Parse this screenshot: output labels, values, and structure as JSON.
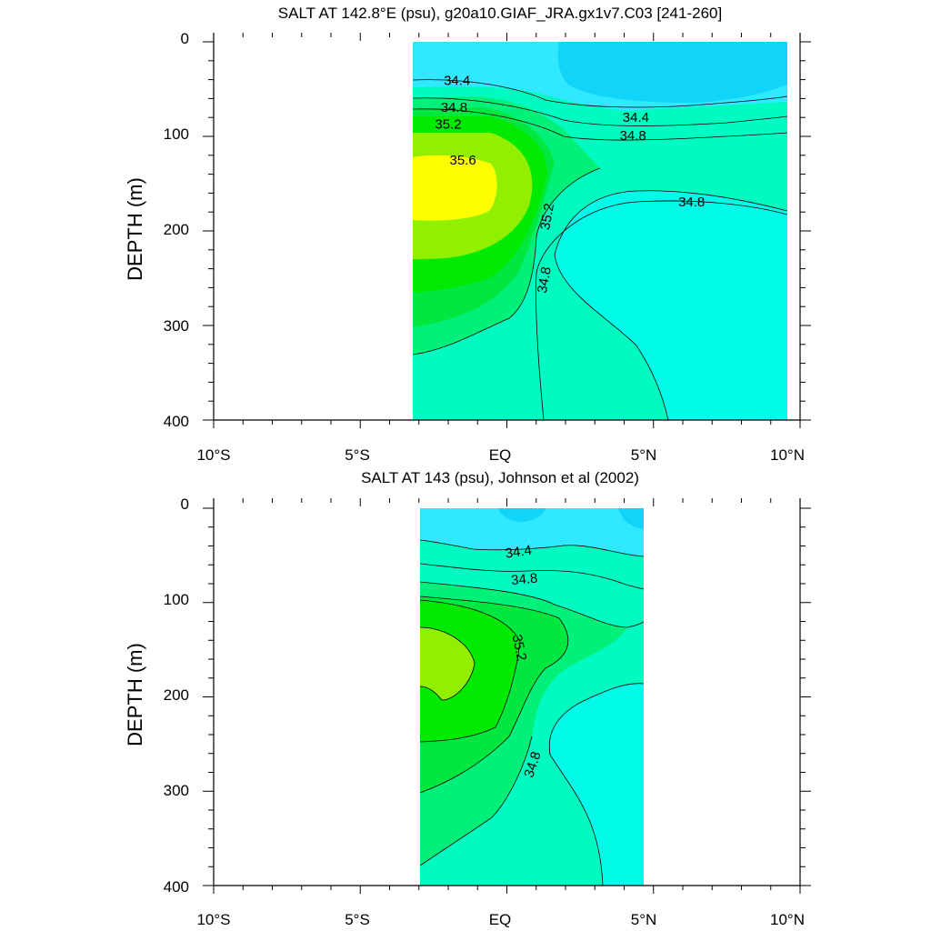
{
  "chart_data": [
    {
      "type": "contour",
      "title": "SALT AT 142.8°E (psu), g20a10.GIAF_JRA.gx1v7.C03 [241-260]",
      "xlabel": "",
      "ylabel": "DEPTH (m)",
      "xlim": [
        -10,
        10
      ],
      "ylim": [
        400,
        0
      ],
      "x_ticks": [
        -10,
        -5,
        0,
        5,
        10
      ],
      "x_tick_labels": [
        "10°S",
        "5°S",
        "EQ",
        "5°N",
        "10°N"
      ],
      "y_ticks": [
        0,
        100,
        200,
        300,
        400
      ],
      "y_tick_labels": [
        "0",
        "100",
        "200",
        "300",
        "400"
      ],
      "data_extent": {
        "lat": [
          -3,
          10
        ],
        "depth": [
          5,
          400
        ]
      },
      "contour_interval": 0.2,
      "fill_levels": [
        {
          "range": "<34.2",
          "color": "#10d4f8"
        },
        {
          "range": "34.2-34.4",
          "color": "#30e8ff"
        },
        {
          "range": "34.4-34.6",
          "color": "#00fbe9"
        },
        {
          "range": "34.6-34.8",
          "color": "#00fbc0"
        },
        {
          "range": "34.8-35.0",
          "color": "#00f07a"
        },
        {
          "range": "35.0-35.2",
          "color": "#00e840"
        },
        {
          "range": "35.2-35.4",
          "color": "#00ea00"
        },
        {
          "range": "35.4-35.6",
          "color": "#90f000"
        },
        {
          "range": ">35.6",
          "color": "#ffff00"
        }
      ],
      "contour_labels": [
        {
          "value": "34.4",
          "lat": -1.7,
          "depth": 42,
          "angle": 0
        },
        {
          "value": "34.8",
          "lat": -1.8,
          "depth": 70,
          "angle": 0
        },
        {
          "value": "35.2",
          "lat": -2.0,
          "depth": 88,
          "angle": 0
        },
        {
          "value": "35.6",
          "lat": -1.5,
          "depth": 126,
          "angle": 0
        },
        {
          "value": "34.4",
          "lat": 4.4,
          "depth": 81,
          "angle": 0
        },
        {
          "value": "34.8",
          "lat": 4.3,
          "depth": 100,
          "angle": 0
        },
        {
          "value": "34.8",
          "lat": 6.3,
          "depth": 170,
          "angle": 0
        },
        {
          "value": "35.2",
          "lat": 1.4,
          "depth": 185,
          "angle": -80
        },
        {
          "value": "34.8",
          "lat": 1.3,
          "depth": 252,
          "angle": -80
        }
      ]
    },
    {
      "type": "contour",
      "title": "SALT AT 143 (psu), Johnson et al (2002)",
      "xlabel": "",
      "ylabel": "DEPTH (m)",
      "xlim": [
        -10,
        10
      ],
      "ylim": [
        400,
        0
      ],
      "x_ticks": [
        -10,
        -5,
        0,
        5,
        10
      ],
      "x_tick_labels": [
        "10°S",
        "5°S",
        "EQ",
        "5°N",
        "10°N"
      ],
      "y_ticks": [
        0,
        100,
        200,
        300,
        400
      ],
      "y_tick_labels": [
        "0",
        "100",
        "200",
        "300",
        "400"
      ],
      "data_extent": {
        "lat": [
          -2.8,
          5
        ],
        "depth": [
          5,
          400
        ]
      },
      "contour_interval": 0.2,
      "contour_labels": [
        {
          "value": "34.4",
          "lat": 0.4,
          "depth": 47,
          "angle": -8
        },
        {
          "value": "34.8",
          "lat": 0.6,
          "depth": 76,
          "angle": -5
        },
        {
          "value": "35.2",
          "lat": 0.4,
          "depth": 148,
          "angle": 78
        },
        {
          "value": "34.8",
          "lat": 0.9,
          "depth": 272,
          "angle": -72
        }
      ]
    }
  ]
}
